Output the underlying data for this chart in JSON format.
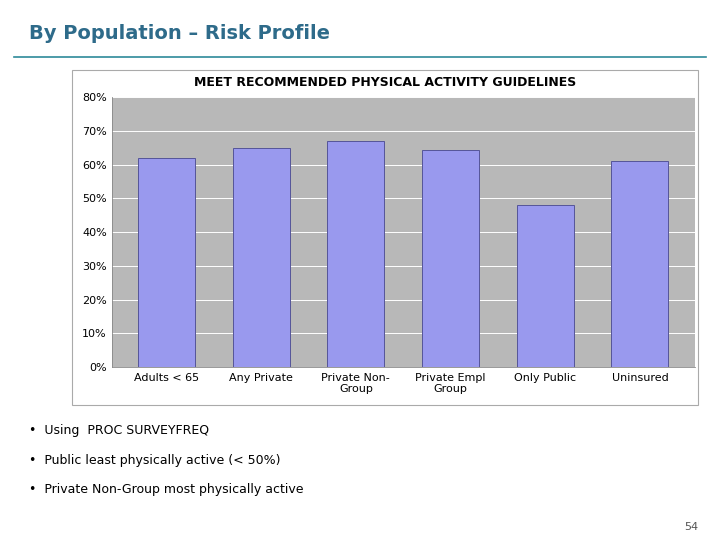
{
  "title": "By Population – Risk Profile",
  "chart_title": "MEET RECOMMENDED PHYSICAL ACTIVITY GUIDELINES",
  "categories": [
    "Adults < 65",
    "Any Private",
    "Private Non-\nGroup",
    "Private Empl\nGroup",
    "Only Public",
    "Uninsured"
  ],
  "values": [
    62,
    65,
    67,
    64.5,
    48,
    61
  ],
  "bar_color": "#9999ee",
  "bar_edge_color": "#555599",
  "plot_bg_color": "#b8b8b8",
  "chart_frame_color": "#ffffff",
  "outer_bg_color": "#ffffff",
  "title_color": "#2e6b8a",
  "title_line_color": "#2e8a9a",
  "ylim": [
    0,
    80
  ],
  "ytick_labels": [
    "0%",
    "10%",
    "20%",
    "30%",
    "40%",
    "50%",
    "60%",
    "70%",
    "80%"
  ],
  "ytick_values": [
    0,
    10,
    20,
    30,
    40,
    50,
    60,
    70,
    80
  ],
  "bullet_points": [
    "Using  PROC SURVEYFREQ",
    "Public least physically active (< 50%)",
    "Private Non-Group most physically active"
  ],
  "page_number": "54"
}
